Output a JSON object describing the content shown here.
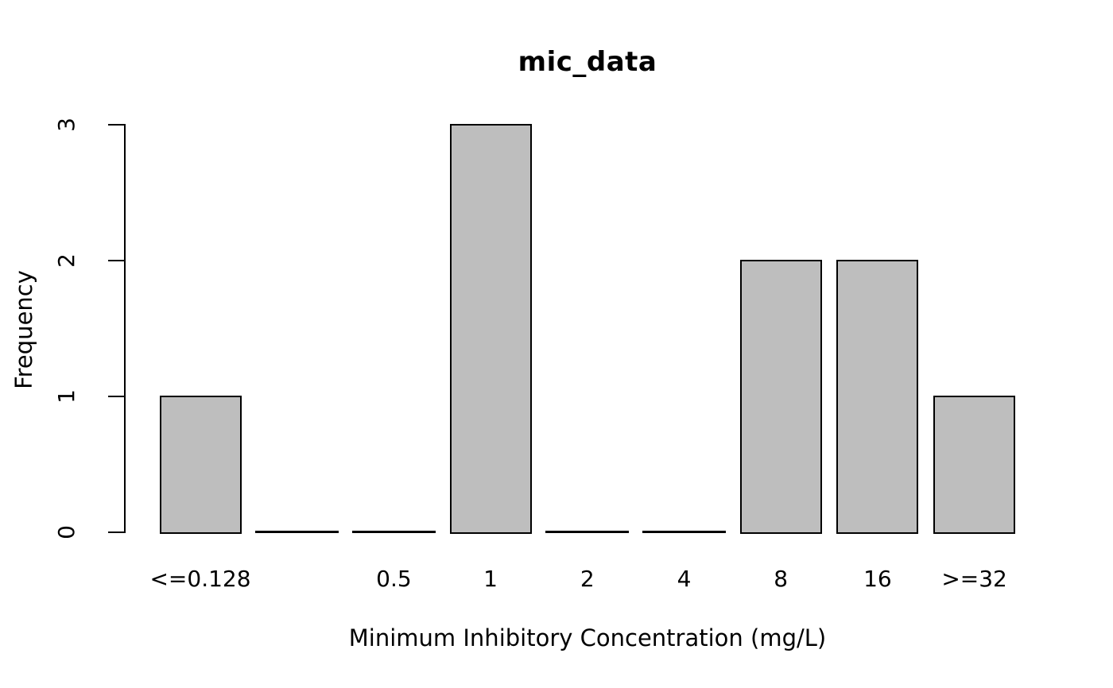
{
  "chart_data": {
    "type": "bar",
    "title": "mic_data",
    "xlabel": "Minimum Inhibitory Concentration (mg/L)",
    "ylabel": "Frequency",
    "categories": [
      "<=0.128",
      "",
      "0.5",
      "1",
      "2",
      "4",
      "8",
      "16",
      ">=32"
    ],
    "values": [
      1,
      0,
      0,
      3,
      0,
      0,
      2,
      2,
      1
    ],
    "yticks": [
      0,
      1,
      2,
      3
    ],
    "ylim": [
      0,
      3
    ],
    "grid": false,
    "legend": "none",
    "bar_fill": "#bebebe",
    "bar_border": "#000000",
    "background": "#ffffff",
    "style_note": "R base-graphics barplot: zero-count categories rendered as flat black segments on the baseline; y tick labels rotated 90 degrees; no x-axis line between bars"
  }
}
